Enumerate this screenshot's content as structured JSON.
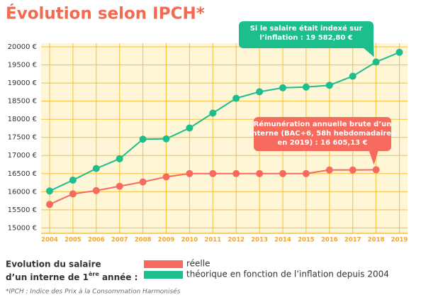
{
  "chart_data": {
    "type": "line",
    "title": "Évolution selon IPCH*",
    "categories": [
      "2004",
      "2005",
      "2006",
      "2007",
      "2008",
      "2009",
      "2010",
      "2011",
      "2012",
      "2013",
      "2014",
      "2015",
      "2016",
      "2017",
      "2018",
      "2019"
    ],
    "series": [
      {
        "name": "réelle",
        "color": "#f76a5e",
        "values": [
          15650,
          15940,
          16030,
          16150,
          16270,
          16410,
          16500,
          16500,
          16500,
          16500,
          16500,
          16500,
          16600,
          16600,
          16605.13,
          null
        ]
      },
      {
        "name": "théorique en fonction de l’inflation depuis 2004",
        "color": "#1cbf8c",
        "values": [
          16020,
          16320,
          16640,
          16910,
          17450,
          17460,
          17760,
          18170,
          18580,
          18760,
          18870,
          18890,
          18940,
          19190,
          19582.8,
          19850
        ]
      }
    ],
    "ylim": [
      14850,
      20100
    ],
    "yticks": [
      {
        "value": 15000,
        "label": "15000 €"
      },
      {
        "value": 15500,
        "label": "15500 €"
      },
      {
        "value": 16000,
        "label": "16000 €"
      },
      {
        "value": 16500,
        "label": "16500 €"
      },
      {
        "value": 17000,
        "label": "17000 €"
      },
      {
        "value": 17500,
        "label": "17500 €"
      },
      {
        "value": 18000,
        "label": "18000 €"
      },
      {
        "value": 18500,
        "label": "18500 €"
      },
      {
        "value": 19000,
        "label": "19000 €"
      },
      {
        "value": 19500,
        "label": "19500 €"
      },
      {
        "value": 20000,
        "label": "20000 €"
      }
    ],
    "grid": true,
    "annotations": [
      {
        "lines": [
          "Si le salaire était indexé sur",
          "l’inflation : "
        ],
        "value_text": "19 582,80 €",
        "series": 1,
        "point": 14
      },
      {
        "lines": [
          "Rémunération annuelle brute d’un",
          "interne (BAC+6, 58h hebdomadaires",
          "en 2019) : "
        ],
        "value_text": "16 605,13 €",
        "series": 0,
        "point": 14
      }
    ],
    "legend_title": [
      "Evolution du salaire",
      "d’un interne de 1",
      "ère",
      " année :"
    ],
    "footnote": "*IPCH : Indice des Prix à la Consommation Harmonisés"
  }
}
